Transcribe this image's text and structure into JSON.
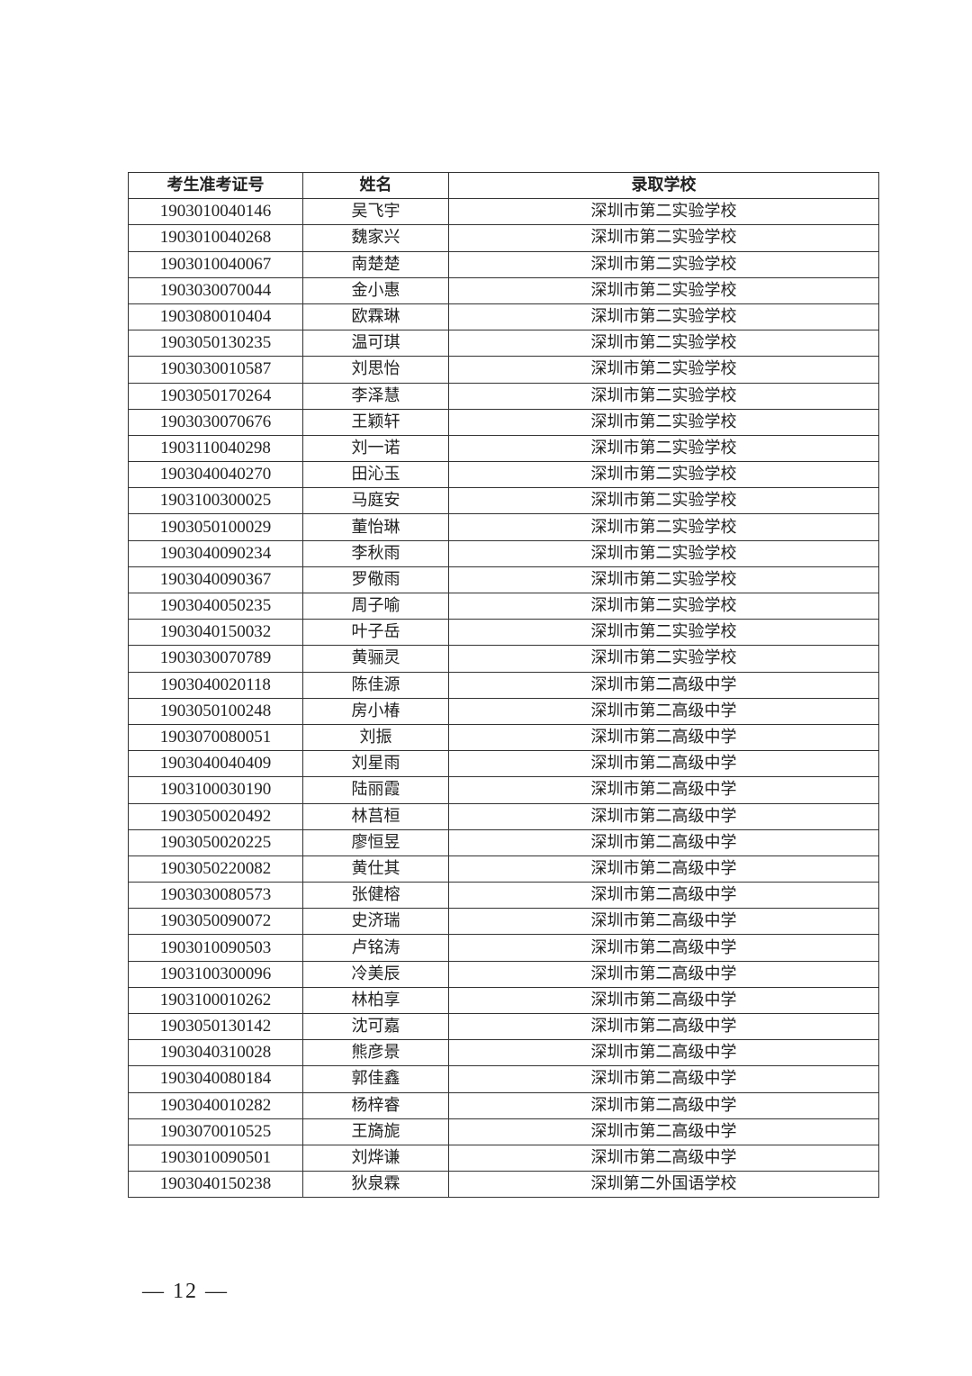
{
  "table": {
    "headers": [
      "考生准考证号",
      "姓名",
      "录取学校"
    ],
    "rows": [
      [
        "1903010040146",
        "吴飞宇",
        "深圳市第二实验学校"
      ],
      [
        "1903010040268",
        "魏家兴",
        "深圳市第二实验学校"
      ],
      [
        "1903010040067",
        "南楚楚",
        "深圳市第二实验学校"
      ],
      [
        "1903030070044",
        "金小惠",
        "深圳市第二实验学校"
      ],
      [
        "1903080010404",
        "欧霖琳",
        "深圳市第二实验学校"
      ],
      [
        "1903050130235",
        "温可琪",
        "深圳市第二实验学校"
      ],
      [
        "1903030010587",
        "刘思怡",
        "深圳市第二实验学校"
      ],
      [
        "1903050170264",
        "李泽慧",
        "深圳市第二实验学校"
      ],
      [
        "1903030070676",
        "王颖轩",
        "深圳市第二实验学校"
      ],
      [
        "1903110040298",
        "刘一诺",
        "深圳市第二实验学校"
      ],
      [
        "1903040040270",
        "田沁玉",
        "深圳市第二实验学校"
      ],
      [
        "1903100300025",
        "马庭安",
        "深圳市第二实验学校"
      ],
      [
        "1903050100029",
        "董怡琳",
        "深圳市第二实验学校"
      ],
      [
        "1903040090234",
        "李秋雨",
        "深圳市第二实验学校"
      ],
      [
        "1903040090367",
        "罗儆雨",
        "深圳市第二实验学校"
      ],
      [
        "1903040050235",
        "周子喻",
        "深圳市第二实验学校"
      ],
      [
        "1903040150032",
        "叶子岳",
        "深圳市第二实验学校"
      ],
      [
        "1903030070789",
        "黄骊灵",
        "深圳市第二实验学校"
      ],
      [
        "1903040020118",
        "陈佳源",
        "深圳市第二高级中学"
      ],
      [
        "1903050100248",
        "房小椿",
        "深圳市第二高级中学"
      ],
      [
        "1903070080051",
        "刘振",
        "深圳市第二高级中学"
      ],
      [
        "1903040040409",
        "刘星雨",
        "深圳市第二高级中学"
      ],
      [
        "1903100030190",
        "陆丽霞",
        "深圳市第二高级中学"
      ],
      [
        "1903050020492",
        "林莒桓",
        "深圳市第二高级中学"
      ],
      [
        "1903050020225",
        "廖恒昱",
        "深圳市第二高级中学"
      ],
      [
        "1903050220082",
        "黄仕其",
        "深圳市第二高级中学"
      ],
      [
        "1903030080573",
        "张健榕",
        "深圳市第二高级中学"
      ],
      [
        "1903050090072",
        "史济瑞",
        "深圳市第二高级中学"
      ],
      [
        "1903010090503",
        "卢铭涛",
        "深圳市第二高级中学"
      ],
      [
        "1903100300096",
        "冷美辰",
        "深圳市第二高级中学"
      ],
      [
        "1903100010262",
        "林柏享",
        "深圳市第二高级中学"
      ],
      [
        "1903050130142",
        "沈可嘉",
        "深圳市第二高级中学"
      ],
      [
        "1903040310028",
        "熊彦景",
        "深圳市第二高级中学"
      ],
      [
        "1903040080184",
        "郭佳鑫",
        "深圳市第二高级中学"
      ],
      [
        "1903040010282",
        "杨梓睿",
        "深圳市第二高级中学"
      ],
      [
        "1903070010525",
        "王旖旎",
        "深圳市第二高级中学"
      ],
      [
        "1903010090501",
        "刘烨谦",
        "深圳市第二高级中学"
      ],
      [
        "1903040150238",
        "狄泉霖",
        "深圳第二外国语学校"
      ]
    ]
  },
  "footer": {
    "page_number": "— 12 —"
  }
}
